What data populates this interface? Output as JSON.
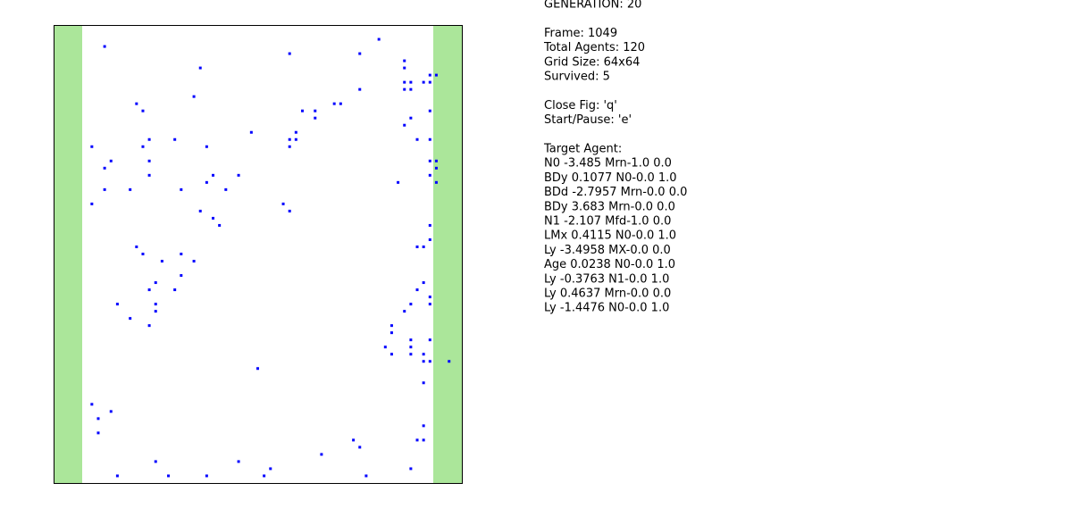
{
  "chart_data": {
    "type": "scatter",
    "color": "#0000ff",
    "xlim": [
      -1,
      63
    ],
    "ylim": [
      63,
      -1
    ],
    "x": [
      7,
      50,
      36,
      47,
      54,
      22,
      54,
      58,
      59,
      54,
      55,
      57,
      58,
      47,
      54,
      55,
      21,
      12,
      43,
      44,
      13,
      38,
      40,
      58,
      40,
      55,
      54,
      30,
      37,
      14,
      18,
      36,
      37,
      56,
      58,
      5,
      13,
      23,
      36,
      8,
      14,
      58,
      59,
      7,
      59,
      14,
      24,
      28,
      58,
      23,
      53,
      59,
      7,
      11,
      19,
      26,
      5,
      35,
      22,
      36,
      24,
      25,
      58,
      58,
      12,
      56,
      57,
      13,
      19,
      16,
      21,
      19,
      15,
      57,
      14,
      18,
      56,
      58,
      9,
      15,
      55,
      58,
      15,
      54,
      11,
      14,
      52,
      52,
      55,
      58,
      51,
      55,
      52,
      55,
      57,
      57,
      58,
      61,
      31,
      57,
      5,
      8,
      6,
      57,
      6,
      46,
      56,
      57,
      47,
      41,
      15,
      28,
      33,
      55,
      9,
      17,
      23,
      32,
      48
    ],
    "y": [
      2,
      1,
      3,
      3,
      4,
      5,
      5,
      6,
      6,
      7,
      7,
      7,
      7,
      8,
      8,
      8,
      9,
      10,
      10,
      10,
      11,
      11,
      11,
      11,
      12,
      12,
      13,
      14,
      14,
      15,
      15,
      15,
      15,
      15,
      15,
      16,
      16,
      16,
      16,
      18,
      18,
      18,
      18,
      19,
      19,
      20,
      20,
      20,
      20,
      21,
      21,
      21,
      22,
      22,
      22,
      22,
      24,
      24,
      25,
      25,
      26,
      27,
      27,
      29,
      30,
      30,
      30,
      31,
      31,
      32,
      32,
      34,
      35,
      35,
      36,
      36,
      36,
      37,
      38,
      38,
      38,
      38,
      39,
      39,
      40,
      41,
      41,
      42,
      43,
      43,
      44,
      44,
      45,
      45,
      45,
      46,
      46,
      46,
      47,
      49,
      52,
      53,
      54,
      55,
      56,
      57,
      57,
      57,
      58,
      59,
      60,
      60,
      61,
      61,
      62,
      62,
      62,
      62,
      62
    ]
  },
  "panel": {
    "blocks": [
      [
        "GENERATION: 20"
      ],
      [
        "Frame: 1049",
        "Total Agents: 120",
        "Grid Size: 64x64",
        "Survived: 5"
      ],
      [
        "Close Fig: 'q'",
        "Start/Pause: 'e'"
      ],
      [
        "Target Agent:",
        "N0 -3.485 Mrn-1.0 0.0",
        "BDy 0.1077 N0-0.0 1.0",
        "BDd -2.7957 Mrn-0.0 0.0",
        "BDy 3.683 Mrn-0.0 0.0",
        "N1 -2.107 Mfd-1.0 0.0",
        "LMx 0.4115 N0-0.0 1.0",
        "Ly -3.4958 MX-0.0 0.0",
        "Age 0.0238 N0-0.0 1.0",
        "Ly -0.3763 N1-0.0 1.0",
        "Ly 0.4637 Mrn-0.0 0.0",
        "Ly -1.4476 N0-0.0 1.0"
      ]
    ]
  }
}
